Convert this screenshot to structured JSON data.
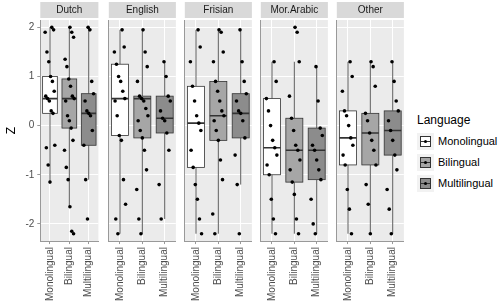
{
  "chart_data": {
    "type": "boxplot",
    "y_label": "Z",
    "ylim": [
      -2.35,
      2.15
    ],
    "yticks": [
      -2,
      -1,
      0,
      1,
      2
    ],
    "grid": true,
    "categories": [
      "Monolingual",
      "Bilingual",
      "Multilingual"
    ],
    "legend": "right",
    "legend_title": "Language",
    "series": [
      {
        "name": "Monolingual",
        "color": "#ffffff"
      },
      {
        "name": "Bilingual",
        "color": "#a6a6a6"
      },
      {
        "name": "Multilingual",
        "color": "#8c8c8c"
      }
    ],
    "facets": [
      {
        "title": "Dutch",
        "boxes": [
          {
            "min": -1.15,
            "q1": 0.25,
            "median": 0.55,
            "q3": 1.0,
            "max": 2.0,
            "points": [
              2.0,
              1.95,
              1.9,
              1.5,
              1.3,
              1.0,
              0.9,
              0.7,
              0.6,
              0.55,
              0.5,
              0.3,
              0.25,
              -0.4,
              -0.45,
              -0.8,
              -1.15
            ]
          },
          {
            "min": -1.65,
            "q1": -0.05,
            "median": 0.55,
            "q3": 0.95,
            "max": 2.0,
            "points": [
              2.0,
              1.9,
              1.8,
              1.35,
              1.2,
              0.95,
              0.8,
              0.6,
              0.55,
              0.5,
              0.2,
              0.1,
              -0.05,
              -0.3,
              -0.5,
              -0.85,
              -1.1,
              -1.65,
              -2.15,
              -2.2
            ]
          },
          {
            "min": -1.1,
            "q1": -0.4,
            "median": 0.25,
            "q3": 0.65,
            "max": 2.0,
            "points": [
              2.0,
              1.95,
              0.9,
              0.65,
              0.5,
              0.3,
              0.25,
              0.2,
              -0.1,
              -0.4,
              -1.1,
              -1.9
            ]
          }
        ]
      },
      {
        "title": "English",
        "boxes": [
          {
            "min": -2.2,
            "q1": -0.2,
            "median": 0.55,
            "q3": 1.25,
            "max": 1.95,
            "points": [
              1.95,
              1.6,
              1.5,
              1.25,
              1.0,
              0.9,
              0.7,
              0.55,
              0.5,
              0.2,
              -0.2,
              -0.3,
              -1.1,
              -1.6,
              -1.9,
              -2.2
            ]
          },
          {
            "min": -2.2,
            "q1": -0.25,
            "median": 0.55,
            "q3": 0.6,
            "max": 1.95,
            "points": [
              1.95,
              1.5,
              1.2,
              0.9,
              0.6,
              0.55,
              0.5,
              0.35,
              0.2,
              0.1,
              -0.1,
              -0.25,
              -0.5,
              -0.9,
              -1.3,
              -1.9,
              -2.2
            ]
          },
          {
            "min": -1.9,
            "q1": -0.15,
            "median": 0.15,
            "q3": 0.6,
            "max": 1.3,
            "points": [
              1.3,
              1.0,
              0.6,
              0.5,
              0.3,
              0.15,
              0.1,
              -0.15,
              -0.5,
              -1.2,
              -1.9
            ]
          }
        ]
      },
      {
        "title": "Frisian",
        "boxes": [
          {
            "min": -2.2,
            "q1": -0.85,
            "median": 0.05,
            "q3": 0.8,
            "max": 1.95,
            "points": [
              1.95,
              1.6,
              1.3,
              0.8,
              0.5,
              0.2,
              0.05,
              -0.1,
              -0.5,
              -0.85,
              -1.2,
              -1.5,
              -1.9,
              -2.2
            ]
          },
          {
            "min": -2.2,
            "q1": -0.3,
            "median": 0.2,
            "q3": 0.9,
            "max": 1.95,
            "points": [
              1.95,
              1.9,
              1.5,
              1.3,
              0.9,
              0.7,
              0.5,
              0.3,
              0.2,
              0.1,
              -0.1,
              -0.3,
              -0.7,
              -1.1,
              -1.8,
              -2.2
            ]
          },
          {
            "min": -1.2,
            "q1": -0.25,
            "median": 0.25,
            "q3": 0.65,
            "max": 1.95,
            "points": [
              1.95,
              1.3,
              0.9,
              0.65,
              0.5,
              0.3,
              0.25,
              0.1,
              -0.25,
              -0.6,
              -1.2,
              -2.2
            ]
          }
        ]
      },
      {
        "title": "Mor.Arabic",
        "boxes": [
          {
            "min": -2.2,
            "q1": -1.0,
            "median": -0.45,
            "q3": 0.55,
            "max": 1.3,
            "points": [
              1.3,
              0.9,
              0.55,
              0.3,
              0.0,
              -0.3,
              -0.45,
              -0.6,
              -0.8,
              -1.0,
              -1.5,
              -1.9,
              -2.2
            ]
          },
          {
            "min": -2.2,
            "q1": -1.15,
            "median": -0.5,
            "q3": 0.15,
            "max": 1.3,
            "points": [
              2.0,
              1.9,
              1.3,
              0.6,
              0.15,
              -0.1,
              -0.4,
              -0.5,
              -0.7,
              -0.9,
              -1.15,
              -1.4,
              -1.9,
              -2.2
            ]
          },
          {
            "min": -2.2,
            "q1": -1.1,
            "median": -0.5,
            "q3": -0.05,
            "max": 1.2,
            "points": [
              1.2,
              0.5,
              -0.05,
              -0.2,
              -0.4,
              -0.5,
              -0.7,
              -0.9,
              -1.1,
              -1.5,
              -2.0,
              -2.2
            ]
          }
        ]
      },
      {
        "title": "Other",
        "boxes": [
          {
            "min": -2.2,
            "q1": -0.8,
            "median": -0.25,
            "q3": 0.3,
            "max": 1.3,
            "points": [
              1.3,
              1.0,
              0.7,
              0.3,
              0.2,
              0.0,
              -0.25,
              -0.4,
              -0.6,
              -0.8,
              -1.3,
              -1.7,
              -2.2
            ]
          },
          {
            "min": -2.2,
            "q1": -0.8,
            "median": -0.15,
            "q3": 0.25,
            "max": 1.3,
            "points": [
              1.3,
              1.2,
              0.8,
              0.25,
              0.1,
              -0.15,
              -0.3,
              -0.5,
              -0.8,
              -1.2,
              -1.6,
              -2.2
            ]
          },
          {
            "min": -2.2,
            "q1": -0.6,
            "median": -0.1,
            "q3": 0.3,
            "max": 1.3,
            "points": [
              1.3,
              0.9,
              0.5,
              0.3,
              0.1,
              -0.1,
              -0.3,
              -0.6,
              -0.9,
              -1.3,
              -1.7,
              -2.2
            ]
          }
        ]
      }
    ]
  }
}
